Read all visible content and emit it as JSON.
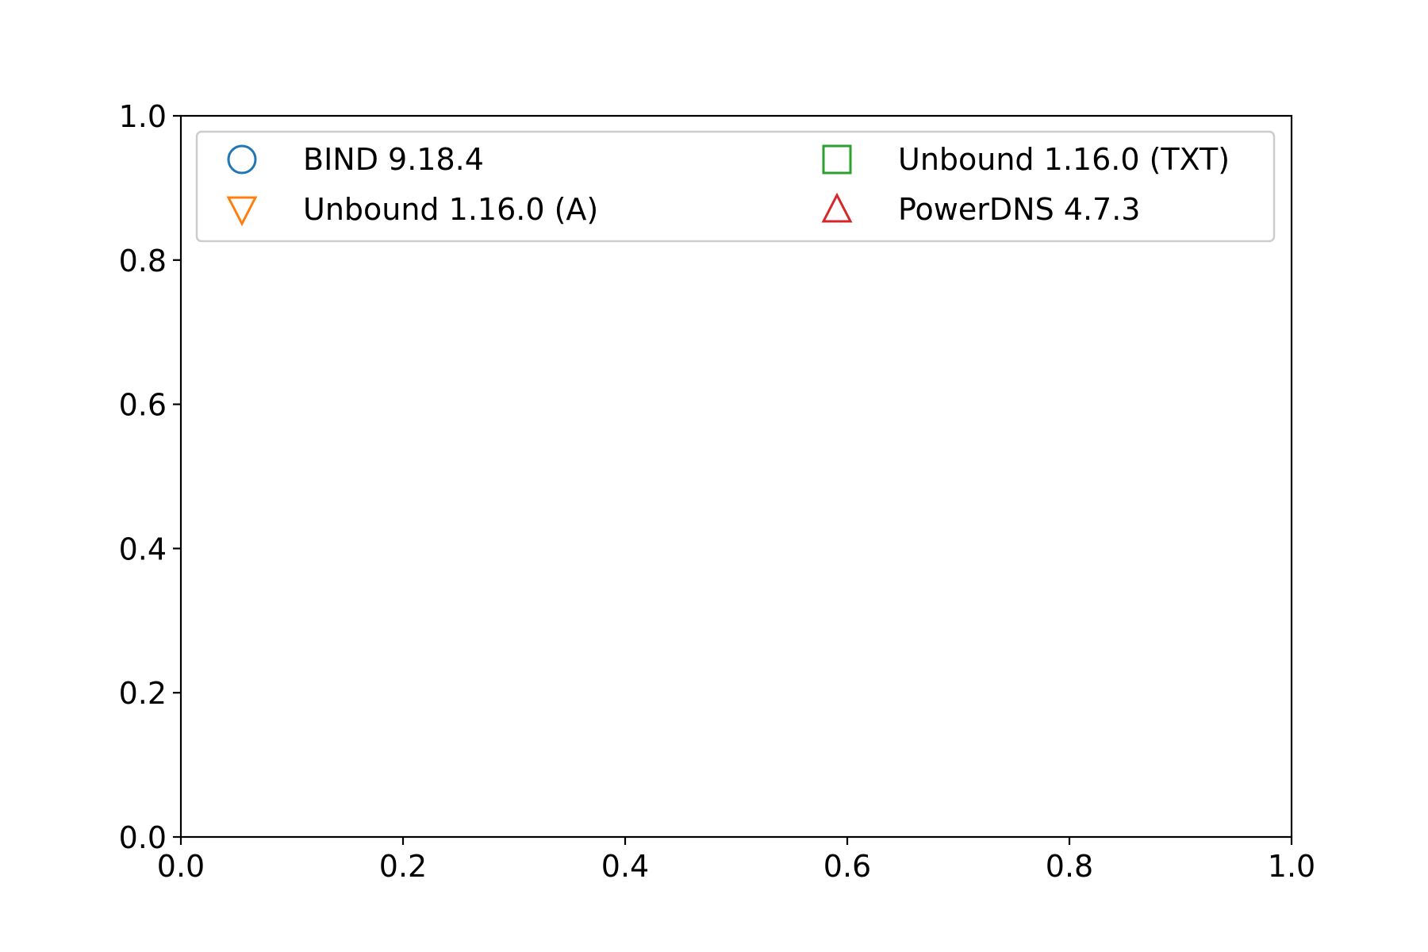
{
  "chart_data": {
    "type": "scatter",
    "title": "",
    "xlabel": "",
    "ylabel": "",
    "xlim": [
      0.0,
      1.0
    ],
    "ylim": [
      0.0,
      1.0
    ],
    "x_ticks": [
      "0.0",
      "0.2",
      "0.4",
      "0.6",
      "0.8",
      "1.0"
    ],
    "y_ticks": [
      "0.0",
      "0.2",
      "0.4",
      "0.6",
      "0.8",
      "1.0"
    ],
    "grid": false,
    "legend_position": "top",
    "legend_columns": 2,
    "series": [
      {
        "name": "BIND 9.18.4",
        "marker": "circle-open",
        "color": "#1f77b4",
        "x": [],
        "y": []
      },
      {
        "name": "Unbound 1.16.0 (A)",
        "marker": "triangle-down-open",
        "color": "#ff7f0e",
        "x": [],
        "y": []
      },
      {
        "name": "Unbound 1.16.0 (TXT)",
        "marker": "square-open",
        "color": "#2ca02c",
        "x": [],
        "y": []
      },
      {
        "name": "PowerDNS 4.7.3",
        "marker": "triangle-up-open",
        "color": "#d62728",
        "x": [],
        "y": []
      }
    ]
  }
}
